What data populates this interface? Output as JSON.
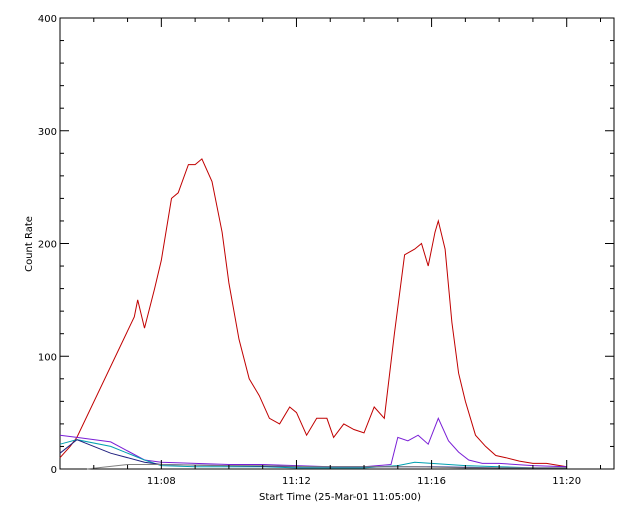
{
  "chart_data": {
    "type": "line",
    "title": "",
    "xlabel": "Start Time (25-Mar-01 11:05:00)",
    "ylabel": "Count Rate",
    "xlim": [
      0,
      16.4
    ],
    "ylim": [
      0,
      400
    ],
    "x_unit": "minutes after 11:05:00",
    "x_ticks": [
      {
        "value": 3,
        "label": "11:08"
      },
      {
        "value": 7,
        "label": "11:12"
      },
      {
        "value": 11,
        "label": "11:16"
      },
      {
        "value": 15,
        "label": "11:20"
      }
    ],
    "y_ticks": [
      {
        "value": 0,
        "label": "0"
      },
      {
        "value": 100,
        "label": "100"
      },
      {
        "value": 200,
        "label": "200"
      },
      {
        "value": 300,
        "label": "300"
      },
      {
        "value": 400,
        "label": "400"
      }
    ],
    "grid": false,
    "legend": "none",
    "series": [
      {
        "color": "#c00000",
        "x": [
          0.0,
          0.3,
          0.5,
          2.2,
          2.3,
          2.5,
          2.8,
          3.0,
          3.3,
          3.5,
          3.8,
          4.0,
          4.2,
          4.5,
          4.8,
          5.0,
          5.3,
          5.6,
          5.9,
          6.2,
          6.5,
          6.8,
          7.0,
          7.3,
          7.6,
          7.9,
          8.1,
          8.4,
          8.7,
          9.0,
          9.3,
          9.6,
          9.9,
          10.2,
          10.5,
          10.7,
          10.9,
          11.1,
          11.2,
          11.4,
          11.6,
          11.8,
          12.0,
          12.3,
          12.6,
          12.9,
          13.2,
          13.6,
          14.0,
          14.4,
          14.8,
          15.0
        ],
        "y": [
          10,
          20,
          28,
          135,
          150,
          125,
          160,
          185,
          240,
          245,
          270,
          270,
          275,
          255,
          210,
          165,
          115,
          80,
          65,
          45,
          40,
          55,
          50,
          30,
          45,
          45,
          28,
          40,
          35,
          32,
          55,
          45,
          120,
          190,
          195,
          200,
          180,
          210,
          220,
          195,
          130,
          85,
          60,
          30,
          20,
          12,
          10,
          7,
          5,
          5,
          3,
          2
        ]
      },
      {
        "color": "#7a1fd6",
        "x": [
          0.0,
          0.5,
          1.5,
          2.5,
          3.0,
          4.0,
          5.0,
          6.0,
          7.0,
          8.0,
          9.0,
          9.8,
          10.0,
          10.3,
          10.6,
          10.9,
          11.2,
          11.5,
          11.8,
          12.1,
          12.5,
          13.0,
          14.0,
          15.0
        ],
        "y": [
          30,
          28,
          24,
          8,
          6,
          5,
          4,
          4,
          3,
          2,
          2,
          4,
          28,
          25,
          30,
          22,
          45,
          25,
          15,
          8,
          5,
          5,
          3,
          2
        ]
      },
      {
        "color": "#00a0b0",
        "x": [
          0.0,
          0.5,
          1.5,
          2.5,
          3.0,
          4.0,
          5.0,
          6.0,
          7.0,
          8.0,
          9.0,
          10.0,
          10.5,
          11.0,
          11.5,
          12.0,
          13.0,
          14.0,
          15.0
        ],
        "y": [
          22,
          26,
          20,
          8,
          3,
          2,
          2,
          2,
          1,
          1,
          1,
          3,
          6,
          5,
          4,
          3,
          2,
          1,
          1
        ]
      },
      {
        "color": "#202080",
        "x": [
          0.0,
          0.5,
          1.5,
          2.5,
          3.0,
          5.0,
          7.0,
          9.0,
          11.0,
          13.0,
          15.0
        ],
        "y": [
          14,
          26,
          14,
          6,
          4,
          3,
          2,
          2,
          2,
          1,
          1
        ]
      },
      {
        "color": "#808080",
        "x": [
          0.8,
          2.0,
          3.0,
          4.5,
          6.0,
          7.5,
          9.0,
          10.5,
          12.0,
          13.5,
          15.0
        ],
        "y": [
          0,
          4,
          4,
          3,
          3,
          2,
          2,
          2,
          1,
          1,
          1
        ]
      }
    ]
  }
}
